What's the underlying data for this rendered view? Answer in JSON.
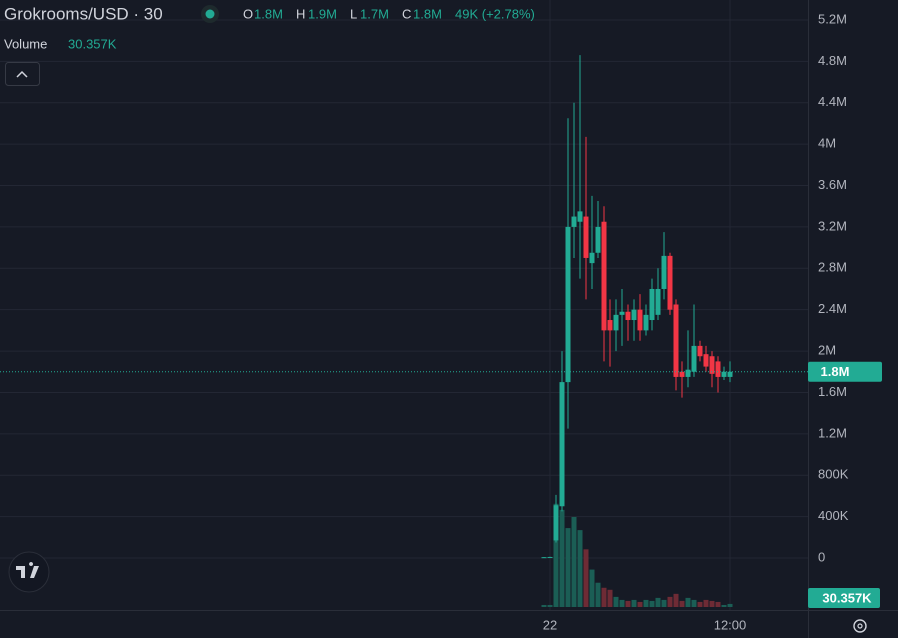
{
  "chart_data": {
    "type": "candlestick",
    "title": "Grokrooms/USD · 30",
    "legend": {
      "o_key": "O",
      "o": "1.8M",
      "h_key": "H",
      "h": "1.9M",
      "l_key": "L",
      "l": "1.7M",
      "c_key": "C",
      "c": "1.8M",
      "change": "49K (+2.78%)"
    },
    "volume_title": "Volume",
    "volume_label": "30.357K",
    "last_price": 1800000,
    "last_price_label": "1.8M",
    "categories": [
      null,
      "22",
      null,
      null,
      null,
      null,
      null,
      null,
      null,
      null,
      null,
      null,
      null,
      null,
      null,
      null,
      null,
      null,
      null,
      null,
      null,
      null,
      null,
      null,
      null,
      null,
      null,
      null,
      null,
      null,
      null,
      "12:00"
    ],
    "open": [
      5000,
      8000,
      170000,
      500000,
      1700000,
      3200000,
      3250000,
      3300000,
      2850000,
      2950000,
      3250000,
      2300000,
      2200000,
      2350000,
      2380000,
      2300000,
      2400000,
      2200000,
      2300000,
      2350000,
      2600000,
      2920000,
      2450000,
      1800000,
      1750000,
      1800000,
      2050000,
      1970000,
      1950000,
      1900000,
      1750000,
      1750000
    ],
    "high": [
      10000,
      12000,
      610000,
      2000000,
      4250000,
      4400000,
      4860000,
      4070000,
      3500000,
      3450000,
      3400000,
      2500000,
      2500000,
      2600000,
      2450000,
      2500000,
      2550000,
      2450000,
      2700000,
      2800000,
      3150000,
      2950000,
      2500000,
      1900000,
      2200000,
      2450000,
      2100000,
      2050000,
      2000000,
      1950000,
      1850000,
      1900000
    ],
    "low": [
      0,
      2000,
      150000,
      450000,
      1250000,
      2900000,
      2700000,
      2500000,
      2600000,
      2900000,
      1900000,
      1850000,
      2000000,
      2050000,
      2100000,
      2100000,
      2100000,
      2150000,
      2200000,
      2300000,
      2500000,
      2350000,
      1620000,
      1550000,
      1650000,
      1750000,
      1900000,
      1800000,
      1650000,
      1600000,
      1720000,
      1700000
    ],
    "close": [
      8000,
      10000,
      510000,
      1700000,
      3200000,
      3300000,
      3350000,
      2900000,
      2950000,
      3200000,
      2200000,
      2200000,
      2350000,
      2380000,
      2300000,
      2400000,
      2200000,
      2350000,
      2600000,
      2600000,
      2920000,
      2400000,
      1750000,
      1750000,
      1820000,
      2050000,
      1950000,
      1850000,
      1780000,
      1750000,
      1800000,
      1800000
    ],
    "volume": [
      20000,
      20000,
      1020000,
      960000,
      780000,
      890000,
      760000,
      570000,
      370000,
      240000,
      190000,
      170000,
      100000,
      70000,
      60000,
      70000,
      50000,
      70000,
      60000,
      90000,
      70000,
      100000,
      130000,
      60000,
      90000,
      70000,
      50000,
      70000,
      60000,
      50000,
      20000,
      30357
    ],
    "up_color": "#22ab94",
    "down_color": "#f23645",
    "volume_up_color": "#1b5e55",
    "volume_down_color": "#6e2b35",
    "ylim": [
      -502600,
      5393000
    ],
    "vlim": [
      0,
      6000000
    ],
    "yticks": [
      {
        "value": 0,
        "label": "0"
      },
      {
        "value": 400000,
        "label": "400K"
      },
      {
        "value": 800000,
        "label": "800K"
      },
      {
        "value": 1200000,
        "label": "1.2M"
      },
      {
        "value": 1600000,
        "label": "1.6M"
      },
      {
        "value": 2000000,
        "label": "2M"
      },
      {
        "value": 2400000,
        "label": "2.4M"
      },
      {
        "value": 2800000,
        "label": "2.8M"
      },
      {
        "value": 3200000,
        "label": "3.2M"
      },
      {
        "value": 3600000,
        "label": "3.6M"
      },
      {
        "value": 4000000,
        "label": "4M"
      },
      {
        "value": 4400000,
        "label": "4.4M"
      },
      {
        "value": 4800000,
        "label": "4.8M"
      },
      {
        "value": 5200000,
        "label": "5.2M"
      }
    ],
    "grid": true
  }
}
